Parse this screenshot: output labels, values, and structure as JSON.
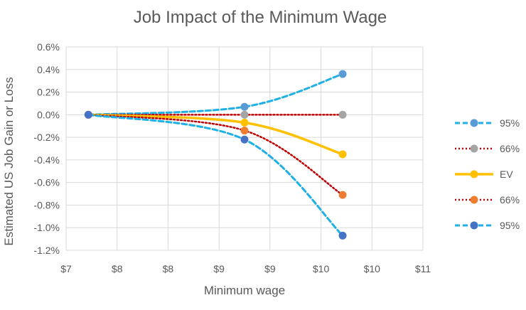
{
  "chart_data": {
    "type": "line",
    "title": "Job Impact of the Minimum Wage",
    "xlabel": "Minimum wage",
    "ylabel": "Estimated US Job Gain or Loss",
    "x_ticks": [
      "$7",
      "$8",
      "$8",
      "$9",
      "$9",
      "$10",
      "$10",
      "$11"
    ],
    "y_ticks": [
      "0.6%",
      "0.4%",
      "0.2%",
      "0.0%",
      "-0.2%",
      "-0.4%",
      "-0.6%",
      "-0.8%",
      "-1.0%",
      "-1.2%"
    ],
    "xlim": [
      7,
      11
    ],
    "ylim": [
      -1.2,
      0.6
    ],
    "grid": true,
    "legend_position": "right",
    "x": [
      7.25,
      9.0,
      10.1
    ],
    "series": [
      {
        "name": "95%",
        "values": [
          0.0,
          0.07,
          0.36
        ],
        "color": "#5b9bd5",
        "line_color": "#1fb0e6",
        "line_style": "dashed"
      },
      {
        "name": "66%",
        "values": [
          0.0,
          0.0,
          0.0
        ],
        "color": "#a5a5a5",
        "line_color": "#c00000",
        "line_style": "dotted"
      },
      {
        "name": "EV",
        "values": [
          0.0,
          -0.07,
          -0.35
        ],
        "color": "#ffc000",
        "line_color": "#ffc000",
        "line_style": "solid"
      },
      {
        "name": "66%",
        "values": [
          0.0,
          -0.14,
          -0.71
        ],
        "color": "#ed7d31",
        "line_color": "#c00000",
        "line_style": "dotted"
      },
      {
        "name": "95%",
        "values": [
          0.0,
          -0.22,
          -1.07
        ],
        "color": "#4472c4",
        "line_color": "#1fb0e6",
        "line_style": "dashed"
      }
    ]
  }
}
